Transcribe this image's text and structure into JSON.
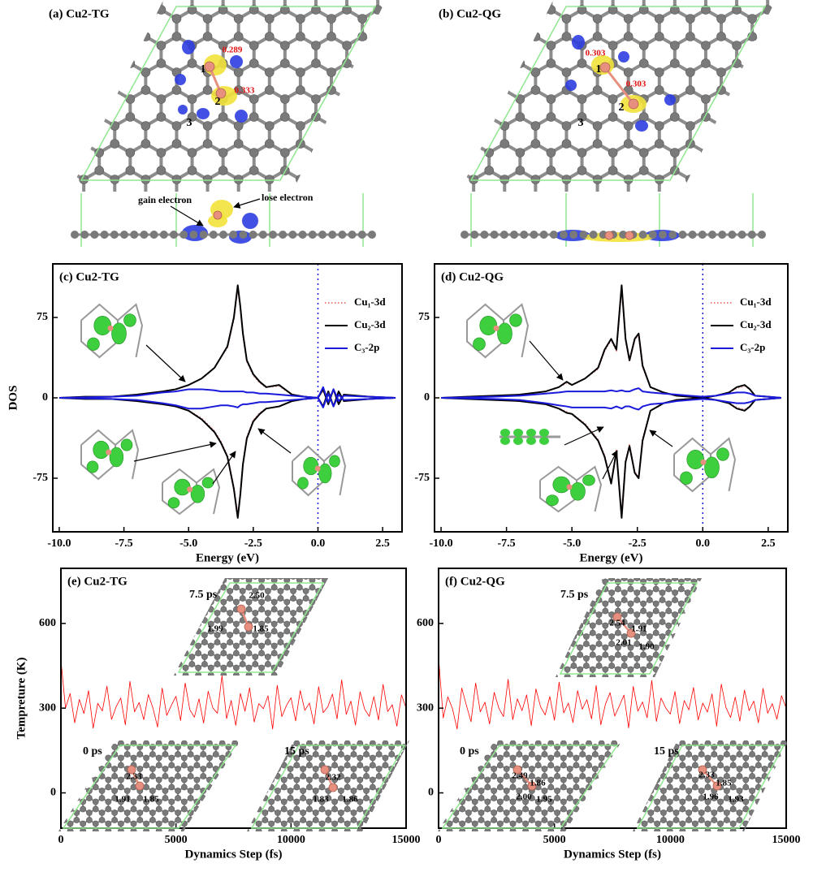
{
  "structures": [
    {
      "title": "(a) Cu2-TG",
      "charges": [
        "0.289",
        "0.333"
      ],
      "atom_labels": [
        "1",
        "2",
        "3"
      ],
      "annotations": [
        "gain electron",
        "lose electron"
      ]
    },
    {
      "title": "(b) Cu2-QG",
      "charges": [
        "0.303",
        "0.303"
      ],
      "atom_labels": [
        "1",
        "2",
        "3"
      ]
    }
  ],
  "chart_data": [
    {
      "type": "line",
      "title": "(c) Cu2-TG",
      "xlabel": "Energy (eV)",
      "ylabel": "DOS",
      "x": [
        -10,
        -9,
        -8,
        -7,
        -6,
        -5.5,
        -5,
        -4.5,
        -4,
        -3.75,
        -3.5,
        -3.25,
        -3.1,
        -3,
        -2.9,
        -2.75,
        -2.5,
        -2.25,
        -2,
        -1.5,
        -1,
        -0.5,
        0,
        0.2,
        0.4,
        0.6,
        0.8,
        1,
        2,
        3
      ],
      "series": [
        {
          "name": "Cu₁-3d",
          "color": "#f08080",
          "linestyle": "dotted",
          "values": [
            0,
            1,
            1,
            3,
            6,
            8,
            12,
            18,
            28,
            38,
            47,
            74,
            103,
            84,
            59,
            34,
            21,
            14,
            10,
            11,
            3,
            1,
            0,
            7,
            -5,
            7,
            -5,
            3,
            1,
            0
          ],
          "values_down": [
            0,
            -1,
            -1,
            -3,
            -6,
            -8,
            -12,
            -19,
            -31,
            -41,
            -54,
            -84,
            -110,
            -89,
            -61,
            -37,
            -21,
            -14,
            -10,
            -8,
            -3,
            -1,
            0,
            -7,
            5,
            -7,
            5,
            -3,
            -1,
            0
          ]
        },
        {
          "name": "Cu₂-3d",
          "color": "#000000",
          "linestyle": "solid",
          "values": [
            0,
            1,
            1,
            3,
            6,
            8,
            12,
            18,
            28,
            38,
            48,
            75,
            105,
            85,
            60,
            35,
            22,
            15,
            10,
            12,
            3,
            1,
            0,
            8,
            -6,
            8,
            -6,
            3,
            1,
            0
          ],
          "values_down": [
            0,
            -1,
            -1,
            -3,
            -6,
            -8,
            -12,
            -20,
            -32,
            -42,
            -55,
            -85,
            -112,
            -90,
            -62,
            -38,
            -22,
            -15,
            -10,
            -8,
            -3,
            -1,
            0,
            -8,
            6,
            -8,
            6,
            -3,
            -1,
            0
          ]
        },
        {
          "name": "C₃-2p",
          "color": "#1a1adb",
          "linestyle": "solid",
          "values": [
            0,
            0.5,
            1,
            2,
            5,
            6,
            8,
            8,
            7,
            6,
            6,
            6,
            6,
            6,
            6,
            5,
            5,
            4,
            4,
            3,
            2,
            1,
            0,
            10,
            -4,
            8,
            -3,
            2,
            1,
            0
          ],
          "values_down": [
            0,
            -0.5,
            -1,
            -2,
            -5,
            -7,
            -10,
            -10,
            -8,
            -7,
            -7,
            -8,
            -9,
            -7,
            -6,
            -6,
            -5,
            -4,
            -4,
            -3,
            -2,
            -1,
            0,
            -9,
            4,
            -8,
            3,
            -2,
            -1,
            0
          ]
        }
      ],
      "xlim": [
        -10.25,
        3.25
      ],
      "ylim": [
        -125,
        125
      ],
      "xticks": [
        {
          "value": -10,
          "label": "-10.0"
        },
        -7.5,
        {
          "value": -5,
          "label": "-5.0"
        },
        -2.5,
        {
          "value": 0,
          "label": "0.0"
        },
        2.5
      ],
      "yticks": [
        -75,
        0,
        75
      ],
      "legend": "upper right",
      "fermi_level": 0
    },
    {
      "type": "line",
      "title": "(d) Cu2-QG",
      "xlabel": "Energy (eV)",
      "x": [
        -10,
        -9,
        -8,
        -7,
        -6,
        -5.5,
        -5.2,
        -5,
        -4.5,
        -4,
        -3.75,
        -3.5,
        -3.3,
        -3.1,
        -2.95,
        -2.8,
        -2.6,
        -2.45,
        -2.3,
        -2,
        -1.5,
        -1,
        -0.5,
        0,
        0.5,
        1,
        1.3,
        1.6,
        1.8,
        2,
        2.5,
        3
      ],
      "series": [
        {
          "name": "Cu₁-3d",
          "color": "#f08080",
          "linestyle": "dotted",
          "values": [
            0,
            1,
            2,
            3,
            6,
            10,
            14,
            12,
            18,
            27,
            44,
            54,
            44,
            103,
            54,
            34,
            54,
            59,
            29,
            10,
            5,
            2,
            1,
            0,
            2,
            5,
            9,
            11,
            8,
            2,
            1,
            0
          ],
          "values_down": [
            0,
            -1,
            -2,
            -3,
            -6,
            -10,
            -13,
            -15,
            -24,
            -39,
            -54,
            -79,
            -49,
            -110,
            -59,
            -44,
            -69,
            -74,
            -39,
            -12,
            -5,
            -2,
            -1,
            0,
            -2,
            -5,
            -9,
            -11,
            -8,
            -2,
            -1,
            0
          ]
        },
        {
          "name": "Cu₂-3d",
          "color": "#000000",
          "linestyle": "solid",
          "values": [
            0,
            1,
            2,
            3,
            6,
            10,
            15,
            12,
            18,
            28,
            45,
            55,
            45,
            105,
            55,
            35,
            55,
            60,
            30,
            10,
            5,
            2,
            1,
            0,
            2,
            5,
            10,
            12,
            8,
            2,
            1,
            0
          ],
          "values_down": [
            0,
            -1,
            -2,
            -3,
            -6,
            -10,
            -14,
            -15,
            -25,
            -40,
            -55,
            -80,
            -50,
            -112,
            -60,
            -45,
            -70,
            -75,
            -40,
            -12,
            -5,
            -2,
            -1,
            0,
            -2,
            -5,
            -10,
            -12,
            -8,
            -2,
            -1,
            0
          ]
        },
        {
          "name": "C₃-2p",
          "color": "#1a1adb",
          "linestyle": "solid",
          "values": [
            0,
            0.5,
            1,
            2,
            4,
            5,
            6,
            6,
            6,
            6,
            6,
            7,
            6,
            7,
            6,
            6,
            8,
            9,
            6,
            5,
            4,
            3,
            2,
            1,
            2,
            4,
            5,
            5,
            4,
            2,
            1,
            0
          ],
          "values_down": [
            0,
            -0.5,
            -1,
            -2,
            -5,
            -7,
            -8,
            -9,
            -9,
            -9,
            -9,
            -10,
            -8,
            -10,
            -8,
            -8,
            -10,
            -11,
            -8,
            -6,
            -5,
            -3,
            -2,
            -1,
            -2,
            -4,
            -5,
            -5,
            -4,
            -2,
            -1,
            0
          ]
        }
      ],
      "xlim": [
        -10.25,
        3.25
      ],
      "ylim": [
        -125,
        125
      ],
      "xticks": [
        {
          "value": -10,
          "label": "-10.0"
        },
        -7.5,
        {
          "value": -5,
          "label": "-5.0"
        },
        -2.5,
        {
          "value": 0,
          "label": "0.0"
        },
        2.5
      ],
      "yticks": [
        -75,
        0,
        75
      ],
      "legend": "upper right",
      "fermi_level": 0
    },
    {
      "type": "line",
      "title": "(e) Cu2-TG",
      "xlabel": "Dynamics Step (fs)",
      "ylabel": "Tempreture (K)",
      "x": [
        0,
        200,
        400,
        600,
        800,
        1000,
        1200,
        1400,
        1600,
        1800,
        2000,
        2200,
        2400,
        2600,
        2800,
        3000,
        3200,
        3400,
        3600,
        3800,
        4000,
        4200,
        4400,
        4600,
        4800,
        5000,
        5200,
        5400,
        5600,
        5800,
        6000,
        6200,
        6400,
        6600,
        6800,
        7000,
        7200,
        7400,
        7600,
        7800,
        8000,
        8200,
        8400,
        8600,
        8800,
        9000,
        9200,
        9400,
        9600,
        9800,
        10000,
        10200,
        10400,
        10600,
        10800,
        11000,
        11200,
        11400,
        11600,
        11800,
        12000,
        12200,
        12400,
        12600,
        12800,
        13000,
        13200,
        13400,
        13600,
        13800,
        14000,
        14200,
        14400,
        14600,
        14800,
        15000
      ],
      "series": [
        {
          "color": "#ff0000",
          "values": [
            470,
            300,
            352,
            248,
            331,
            281,
            362,
            229,
            317,
            290,
            378,
            260,
            305,
            336,
            241,
            395,
            287,
            320,
            259,
            348,
            300,
            233,
            371,
            274,
            310,
            342,
            256,
            389,
            295,
            268,
            333,
            247,
            360,
            301,
            282,
            415,
            263,
            327,
            239,
            352,
            289,
            372,
            251,
            316,
            298,
            344,
            226,
            381,
            270,
            309,
            337,
            255,
            362,
            292,
            318,
            244,
            376,
            284,
            305,
            350,
            262,
            400,
            278,
            325,
            240,
            358,
            296,
            271,
            341,
            258,
            384,
            288,
            312,
            236,
            347,
            300
          ]
        }
      ],
      "xlim": [
        0,
        15000
      ],
      "ylim": [
        -125,
        795
      ],
      "xticks": [
        0,
        5000,
        10000,
        15000
      ],
      "yticks": [
        0,
        300,
        600
      ],
      "insets": [
        {
          "label": "7.5 ps",
          "bonds": [
            "2.50",
            "1.99",
            "1.85"
          ]
        },
        {
          "label": "0 ps",
          "bonds": [
            "2.33",
            "1.91",
            "1.85"
          ]
        },
        {
          "label": "15 ps",
          "bonds": [
            "2.32",
            "1.83",
            "1.86"
          ]
        }
      ]
    },
    {
      "type": "line",
      "title": "(f) Cu2-QG",
      "xlabel": "Dynamics Step (fs)",
      "x": [
        0,
        200,
        400,
        600,
        800,
        1000,
        1200,
        1400,
        1600,
        1800,
        2000,
        2200,
        2400,
        2600,
        2800,
        3000,
        3200,
        3400,
        3600,
        3800,
        4000,
        4200,
        4400,
        4600,
        4800,
        5000,
        5200,
        5400,
        5600,
        5800,
        6000,
        6200,
        6400,
        6600,
        6800,
        7000,
        7200,
        7400,
        7600,
        7800,
        8000,
        8200,
        8400,
        8600,
        8800,
        9000,
        9200,
        9400,
        9600,
        9800,
        10000,
        10200,
        10400,
        10600,
        10800,
        11000,
        11200,
        11400,
        11600,
        11800,
        12000,
        12200,
        12400,
        12600,
        12800,
        13000,
        13200,
        13400,
        13600,
        13800,
        14000,
        14200,
        14400,
        14600,
        14800,
        15000
      ],
      "series": [
        {
          "color": "#ff0000",
          "values": [
            480,
            265,
            340,
            298,
            226,
            371,
            310,
            252,
            389,
            287,
            321,
            244,
            356,
            300,
            270,
            402,
            259,
            333,
            291,
            347,
            238,
            368,
            305,
            276,
            341,
            257,
            392,
            283,
            318,
            249,
            362,
            296,
            330,
            262,
            380,
            241,
            314,
            355,
            272,
            308,
            346,
            230,
            377,
            289,
            322,
            266,
            398,
            253,
            336,
            301,
            279,
            359,
            245,
            327,
            294,
            373,
            258,
            318,
            286,
            350,
            236,
            385,
            302,
            267,
            339,
            254,
            364,
            291,
            325,
            248,
            370,
            282,
            316,
            261,
            344,
            300
          ]
        }
      ],
      "xlim": [
        0,
        15000
      ],
      "ylim": [
        -125,
        795
      ],
      "xticks": [
        0,
        5000,
        10000,
        15000
      ],
      "yticks": [
        0,
        300,
        600
      ],
      "insets": [
        {
          "label": "7.5 ps",
          "bonds": [
            "2.54",
            "1.91",
            "2.01",
            "1.90"
          ]
        },
        {
          "label": "0 ps",
          "bonds": [
            "2.49",
            "1.86",
            "2.00",
            "1.95"
          ]
        },
        {
          "label": "15 ps",
          "bonds": [
            "2.33",
            "1.85",
            "1.96",
            "1.93"
          ]
        }
      ]
    }
  ]
}
